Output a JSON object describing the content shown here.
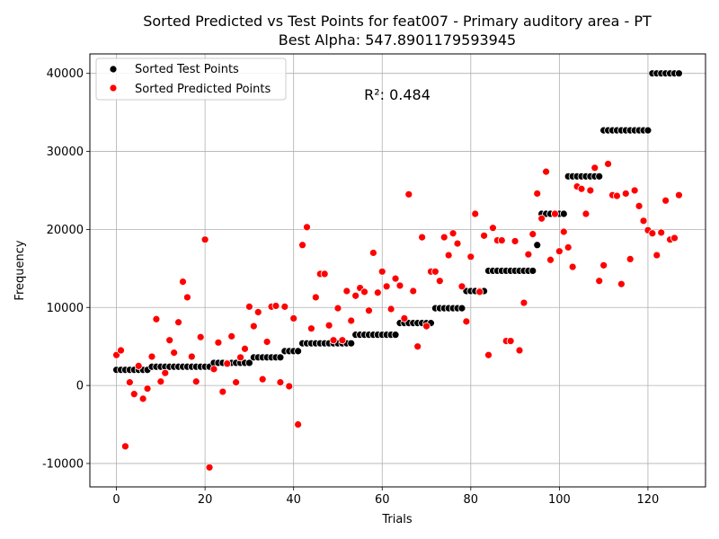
{
  "figure": {
    "title_line1": "Sorted Predicted vs Test Points for feat007 - Primary auditory area - PT",
    "title_line2": "Best Alpha: 547.8901179593945"
  },
  "chart_data": {
    "type": "scatter",
    "xlabel": "Trials",
    "ylabel": "Frequency",
    "xlim": [
      -6,
      133
    ],
    "ylim": [
      -13000,
      42500
    ],
    "xticks": [
      0,
      20,
      40,
      60,
      80,
      100,
      120
    ],
    "yticks": [
      -10000,
      0,
      10000,
      20000,
      30000,
      40000
    ],
    "grid": true,
    "legend_position": "top-left",
    "annotation": "R²: 0.484",
    "annotation_color": "#0000ff",
    "series": [
      {
        "name": "Sorted Test Points",
        "color": "#000000",
        "x": [
          0,
          1,
          2,
          3,
          4,
          5,
          6,
          7,
          8,
          9,
          10,
          11,
          12,
          13,
          14,
          15,
          16,
          17,
          18,
          19,
          20,
          21,
          22,
          23,
          24,
          25,
          26,
          27,
          28,
          29,
          30,
          31,
          32,
          33,
          34,
          35,
          36,
          37,
          38,
          39,
          40,
          41,
          42,
          43,
          44,
          45,
          46,
          47,
          48,
          49,
          50,
          51,
          52,
          53,
          54,
          55,
          56,
          57,
          58,
          59,
          60,
          61,
          62,
          63,
          64,
          65,
          66,
          67,
          68,
          69,
          70,
          71,
          72,
          73,
          74,
          75,
          76,
          77,
          78,
          79,
          80,
          81,
          82,
          83,
          84,
          85,
          86,
          87,
          88,
          89,
          90,
          91,
          92,
          93,
          94,
          95,
          96,
          97,
          98,
          99,
          100,
          101,
          102,
          103,
          104,
          105,
          106,
          107,
          108,
          109,
          110,
          111,
          112,
          113,
          114,
          115,
          116,
          117,
          118,
          119,
          120,
          121,
          122,
          123,
          124,
          125,
          126,
          127
        ],
        "y": [
          2000,
          2000,
          2000,
          2000,
          2000,
          2000,
          2000,
          2000,
          2400,
          2400,
          2400,
          2400,
          2400,
          2400,
          2400,
          2400,
          2400,
          2400,
          2400,
          2400,
          2400,
          2400,
          2900,
          2900,
          2900,
          2900,
          2900,
          2900,
          2900,
          2900,
          2900,
          3600,
          3600,
          3600,
          3600,
          3600,
          3600,
          3600,
          4400,
          4400,
          4400,
          4400,
          5400,
          5400,
          5400,
          5400,
          5400,
          5400,
          5400,
          5400,
          5400,
          5400,
          5400,
          5400,
          6500,
          6500,
          6500,
          6500,
          6500,
          6500,
          6500,
          6500,
          6500,
          6500,
          8000,
          8000,
          8000,
          8000,
          8000,
          8000,
          8000,
          8000,
          9900,
          9900,
          9900,
          9900,
          9900,
          9900,
          9900,
          12100,
          12100,
          12100,
          12100,
          12100,
          14700,
          14700,
          14700,
          14700,
          14700,
          14700,
          14700,
          14700,
          14700,
          14700,
          14700,
          18000,
          22000,
          22000,
          22000,
          22000,
          22000,
          22000,
          26800,
          26800,
          26800,
          26800,
          26800,
          26800,
          26800,
          26800,
          32700,
          32700,
          32700,
          32700,
          32700,
          32700,
          32700,
          32700,
          32700,
          32700,
          32700,
          40000,
          40000,
          40000,
          40000,
          40000,
          40000,
          40000
        ]
      },
      {
        "name": "Sorted Predicted Points",
        "color": "#ff0000",
        "x": [
          0,
          1,
          2,
          3,
          4,
          5,
          6,
          7,
          8,
          9,
          10,
          11,
          12,
          13,
          14,
          15,
          16,
          17,
          18,
          19,
          20,
          21,
          22,
          23,
          24,
          25,
          26,
          27,
          28,
          29,
          30,
          31,
          32,
          33,
          34,
          35,
          36,
          37,
          38,
          39,
          40,
          41,
          42,
          43,
          44,
          45,
          46,
          47,
          48,
          49,
          50,
          51,
          52,
          53,
          54,
          55,
          56,
          57,
          58,
          59,
          60,
          61,
          62,
          63,
          64,
          65,
          66,
          67,
          68,
          69,
          70,
          71,
          72,
          73,
          74,
          75,
          76,
          77,
          78,
          79,
          80,
          81,
          82,
          83,
          84,
          85,
          86,
          87,
          88,
          89,
          90,
          91,
          92,
          93,
          94,
          95,
          96,
          97,
          98,
          99,
          100,
          101,
          102,
          103,
          104,
          105,
          106,
          107,
          108,
          109,
          110,
          111,
          112,
          113,
          114,
          115,
          116,
          117,
          118,
          119,
          120,
          121,
          122,
          123,
          124,
          125,
          126,
          127
        ],
        "y": [
          3900,
          4500,
          -7800,
          400,
          -1100,
          2500,
          -1700,
          -400,
          3700,
          8500,
          500,
          1600,
          5800,
          4200,
          8100,
          13300,
          11300,
          3700,
          500,
          6200,
          18700,
          -10500,
          2100,
          5500,
          -800,
          2800,
          6300,
          400,
          3600,
          4700,
          10100,
          7600,
          9400,
          800,
          5600,
          10100,
          10200,
          400,
          10100,
          -100,
          8600,
          -5000,
          18000,
          20300,
          7300,
          11300,
          14300,
          14300,
          7700,
          5800,
          9900,
          5800,
          12100,
          8300,
          11500,
          12500,
          12000,
          9600,
          17000,
          11900,
          14600,
          12700,
          9800,
          13700,
          12800,
          8600,
          24500,
          12100,
          5000,
          19000,
          7600,
          14600,
          14600,
          13400,
          19000,
          16700,
          19500,
          18200,
          12700,
          8200,
          16500,
          22000,
          12000,
          19200,
          3900,
          20200,
          18600,
          18600,
          5700,
          5700,
          18500,
          4500,
          10600,
          16800,
          19400,
          24600,
          21400,
          27400,
          16100,
          22000,
          17200,
          19700,
          17700,
          15200,
          25500,
          25200,
          22000,
          25000,
          27900,
          13400,
          15400,
          28400,
          24400,
          24300,
          13000,
          24600,
          16200,
          25000,
          23000,
          21100,
          19900,
          19500,
          16700,
          19600,
          23700,
          18700,
          18900,
          24400
        ]
      }
    ]
  }
}
